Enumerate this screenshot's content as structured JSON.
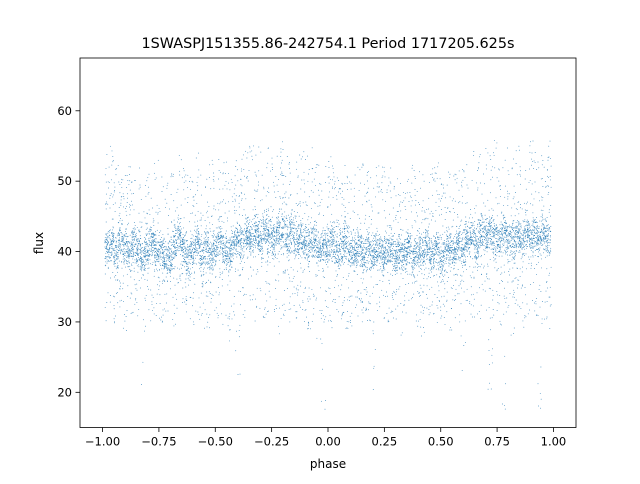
{
  "chart_data": {
    "type": "scatter",
    "title": "1SWASPJ151355.86-242754.1 Period 1717205.625s",
    "xlabel": "phase",
    "ylabel": "flux",
    "xlim": [
      -1.1,
      1.1
    ],
    "ylim": [
      15.0,
      67.5
    ],
    "xticks": [
      -1.0,
      -0.75,
      -0.5,
      -0.25,
      0.0,
      0.25,
      0.5,
      0.75,
      1.0
    ],
    "xtick_labels": [
      "−1.00",
      "−0.75",
      "−0.50",
      "−0.25",
      "0.00",
      "0.25",
      "0.50",
      "0.75",
      "1.00"
    ],
    "yticks": [
      20,
      30,
      40,
      50,
      60
    ],
    "ytick_labels": [
      "20",
      "30",
      "40",
      "50",
      "60"
    ],
    "grid": false,
    "point_color": "#1f77b4",
    "series": [
      {
        "x": [
          -0.98,
          -0.96,
          -0.94,
          -0.92,
          -0.9,
          -0.88,
          -0.86,
          -0.84,
          -0.82,
          -0.8,
          -0.78,
          -0.76,
          -0.74,
          -0.72,
          -0.7,
          -0.68,
          -0.66,
          -0.64,
          -0.62,
          -0.6,
          -0.58,
          -0.56,
          -0.54,
          -0.52,
          -0.5,
          -0.48,
          -0.46,
          -0.44,
          -0.42,
          -0.4,
          -0.38,
          -0.36,
          -0.34,
          -0.32,
          -0.3,
          -0.28,
          -0.26,
          -0.24,
          -0.22,
          -0.2,
          -0.18,
          -0.16,
          -0.14,
          -0.12,
          -0.1,
          -0.08,
          -0.06,
          -0.04,
          -0.02,
          0.0,
          0.02,
          0.04,
          0.06,
          0.08,
          0.1,
          0.12,
          0.14,
          0.16,
          0.18,
          0.2,
          0.22,
          0.24,
          0.26,
          0.28,
          0.3,
          0.32,
          0.34,
          0.36,
          0.38,
          0.4,
          0.42,
          0.44,
          0.46,
          0.48,
          0.5,
          0.52,
          0.54,
          0.56,
          0.58,
          0.6,
          0.62,
          0.64,
          0.66,
          0.68,
          0.7,
          0.72,
          0.74,
          0.76,
          0.78,
          0.8,
          0.82,
          0.84,
          0.86,
          0.88,
          0.9,
          0.92,
          0.94,
          0.96,
          0.98
        ],
        "y": [
          40.5,
          41.2,
          39.8,
          42.1,
          40.6,
          39.5,
          41.0,
          40.2,
          39.1,
          40.8,
          41.5,
          39.9,
          40.3,
          38.7,
          39.6,
          40.9,
          41.8,
          40.4,
          39.2,
          40.0,
          41.1,
          39.7,
          40.6,
          39.3,
          40.7,
          41.9,
          40.1,
          39.4,
          40.8,
          42.0,
          41.3,
          42.6,
          41.7,
          42.8,
          41.5,
          43.1,
          42.2,
          41.6,
          42.9,
          42.4,
          41.8,
          42.7,
          41.2,
          42.0,
          41.4,
          40.8,
          41.6,
          40.2,
          41.0,
          40.4,
          41.3,
          39.9,
          40.7,
          41.5,
          40.1,
          39.6,
          40.9,
          39.4,
          40.3,
          39.8,
          40.6,
          39.2,
          39.9,
          40.5,
          39.0,
          40.2,
          39.7,
          40.8,
          39.3,
          40.1,
          39.6,
          40.9,
          39.5,
          40.4,
          39.1,
          40.0,
          40.7,
          39.8,
          41.2,
          40.3,
          41.6,
          42.1,
          41.4,
          42.5,
          41.8,
          42.9,
          42.2,
          41.6,
          42.7,
          42.0,
          41.3,
          42.4,
          41.7,
          42.8,
          41.9,
          42.3,
          41.5,
          42.6,
          41.8
        ],
        "y_min": [
          30,
          31,
          29,
          32,
          28,
          31,
          30,
          29,
          17.5,
          31,
          30,
          29,
          28,
          31,
          30,
          29,
          31,
          32,
          30,
          29,
          31,
          30,
          29,
          28,
          31,
          30,
          29,
          27,
          30,
          22,
          31,
          30,
          32,
          29,
          31,
          30,
          29,
          31,
          28,
          30,
          31,
          29,
          30,
          31,
          28,
          29,
          30,
          27,
          17.2,
          30,
          29,
          31,
          30,
          28,
          29,
          31,
          30,
          29,
          30,
          18,
          31,
          30,
          29,
          31,
          30,
          28,
          29,
          31,
          30,
          29,
          28,
          31,
          30,
          29,
          30,
          29,
          28,
          30,
          29,
          23,
          31,
          30,
          29,
          30,
          31,
          19,
          30,
          29,
          17.5,
          31,
          28,
          30,
          29,
          30,
          31,
          29,
          17.3,
          30,
          29
        ],
        "y_max": [
          54,
          55,
          53,
          54,
          52,
          53,
          51,
          52,
          50,
          51,
          52,
          53,
          51,
          50,
          52,
          53,
          54,
          52,
          51,
          53,
          54,
          52,
          51,
          53,
          52,
          54,
          53,
          52,
          51,
          53,
          54,
          55,
          56,
          54,
          55,
          53,
          56,
          54,
          55,
          56,
          54,
          53,
          55,
          54,
          56,
          53,
          55,
          54,
          52,
          53,
          54,
          52,
          51,
          53,
          52,
          51,
          52,
          53,
          52,
          51,
          53,
          52,
          51,
          52,
          51,
          50,
          52,
          51,
          53,
          52,
          51,
          50,
          52,
          53,
          51,
          50,
          52,
          51,
          53,
          52,
          54,
          55,
          53,
          56,
          55,
          54,
          56,
          55,
          53,
          56,
          54,
          55,
          53,
          54,
          56,
          55,
          54,
          53,
          56
        ]
      }
    ]
  }
}
